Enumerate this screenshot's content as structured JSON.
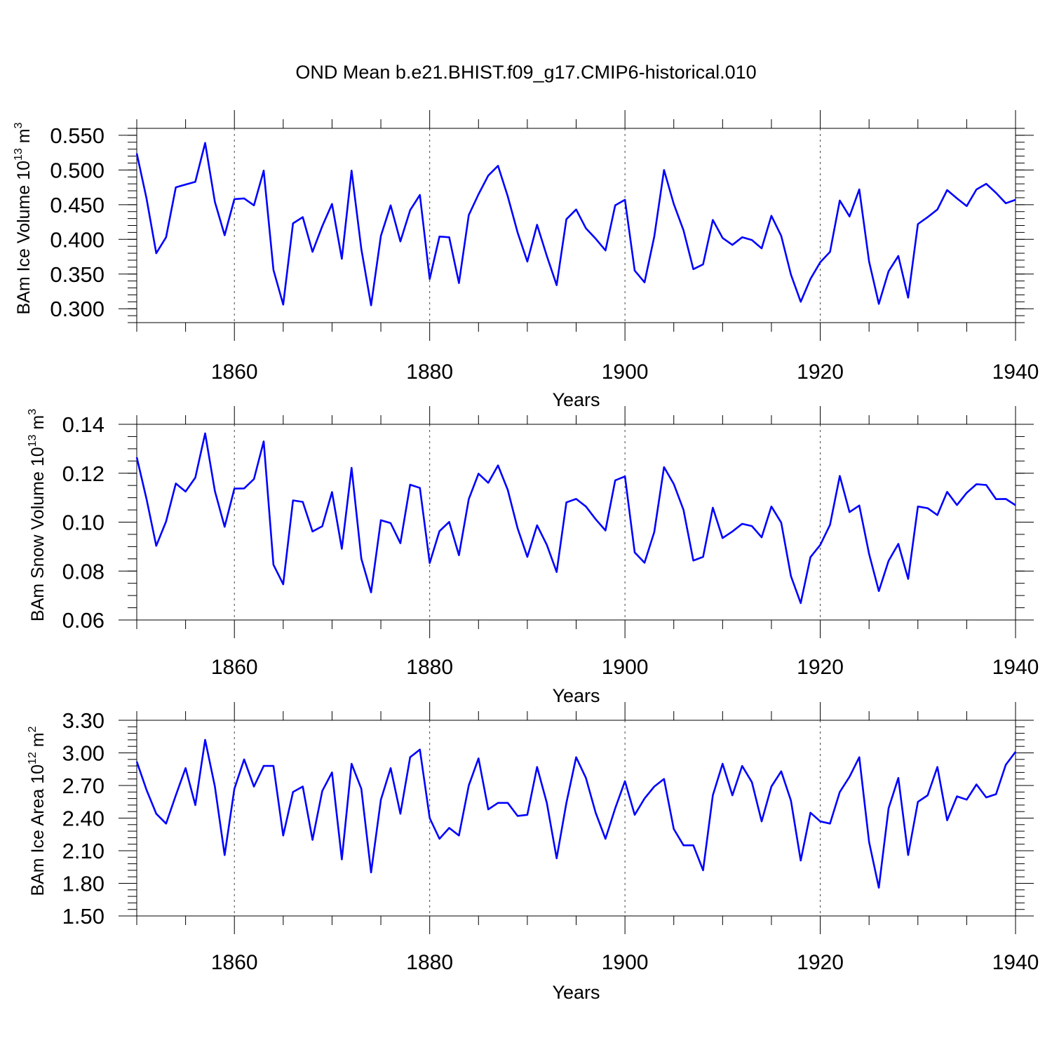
{
  "title": "OND Mean b.e21.BHIST.f09_g17.CMIP6-historical.010",
  "chart_data": [
    {
      "type": "line",
      "name": "ice-volume",
      "ylabel": "BAm Ice Volume 10",
      "ylabel_exp": "13",
      "ylabel_unit": " m",
      "ylabel_unit_exp": "3",
      "xlabel": "Years",
      "xlim": [
        1850,
        1940
      ],
      "ylim": [
        0.28,
        0.56
      ],
      "yticks": [
        0.3,
        0.35,
        0.4,
        0.45,
        0.5,
        0.55
      ],
      "ytick_labels": [
        "0.300",
        "0.350",
        "0.400",
        "0.450",
        "0.500",
        "0.550"
      ],
      "xticks": [
        1860,
        1880,
        1900,
        1920,
        1940
      ],
      "xtick_labels": [
        "1860",
        "1880",
        "1900",
        "1920",
        "1940"
      ],
      "x_start": 1850,
      "values": [
        0.524,
        0.459,
        0.38,
        0.403,
        0.475,
        0.479,
        0.483,
        0.539,
        0.454,
        0.406,
        0.458,
        0.459,
        0.449,
        0.499,
        0.356,
        0.306,
        0.423,
        0.432,
        0.382,
        0.419,
        0.451,
        0.372,
        0.499,
        0.386,
        0.305,
        0.405,
        0.449,
        0.397,
        0.442,
        0.464,
        0.343,
        0.404,
        0.403,
        0.337,
        0.435,
        0.465,
        0.492,
        0.506,
        0.462,
        0.41,
        0.368,
        0.421,
        0.376,
        0.334,
        0.429,
        0.443,
        0.416,
        0.401,
        0.384,
        0.449,
        0.457,
        0.355,
        0.338,
        0.404,
        0.5,
        0.451,
        0.413,
        0.357,
        0.364,
        0.428,
        0.402,
        0.392,
        0.403,
        0.399,
        0.387,
        0.434,
        0.405,
        0.349,
        0.31,
        0.343,
        0.367,
        0.382,
        0.456,
        0.433,
        0.472,
        0.368,
        0.307,
        0.354,
        0.376,
        0.316,
        0.422,
        0.432,
        0.443,
        0.471,
        0.459,
        0.448,
        0.472,
        0.48,
        0.467,
        0.452,
        0.457
      ]
    },
    {
      "type": "line",
      "name": "snow-volume",
      "ylabel": "BAm Snow Volume 10",
      "ylabel_exp": "13",
      "ylabel_unit": " m",
      "ylabel_unit_exp": "3",
      "xlabel": "Years",
      "xlim": [
        1850,
        1940
      ],
      "ylim": [
        0.06,
        0.14
      ],
      "yticks": [
        0.06,
        0.08,
        0.1,
        0.12,
        0.14
      ],
      "ytick_labels": [
        "0.06",
        "0.08",
        "0.10",
        "0.12",
        "0.14"
      ],
      "xticks": [
        1860,
        1880,
        1900,
        1920,
        1940
      ],
      "xtick_labels": [
        "1860",
        "1880",
        "1900",
        "1920",
        "1940"
      ],
      "x_start": 1850,
      "values": [
        0.1265,
        0.1095,
        0.0903,
        0.1003,
        0.1158,
        0.1125,
        0.1182,
        0.1363,
        0.1127,
        0.0981,
        0.1137,
        0.1138,
        0.1176,
        0.133,
        0.0826,
        0.0746,
        0.1089,
        0.1083,
        0.0962,
        0.0983,
        0.1123,
        0.0891,
        0.1222,
        0.0851,
        0.0713,
        0.1008,
        0.0996,
        0.0914,
        0.1153,
        0.114,
        0.0833,
        0.0963,
        0.1001,
        0.0865,
        0.1094,
        0.1198,
        0.1161,
        0.1232,
        0.1132,
        0.0975,
        0.0858,
        0.0987,
        0.0907,
        0.0796,
        0.1081,
        0.1095,
        0.1064,
        0.1012,
        0.0966,
        0.1171,
        0.1187,
        0.0876,
        0.0834,
        0.096,
        0.1225,
        0.1156,
        0.105,
        0.0843,
        0.0858,
        0.1059,
        0.0935,
        0.0962,
        0.0993,
        0.0984,
        0.0938,
        0.1064,
        0.0998,
        0.0779,
        0.0669,
        0.0857,
        0.0907,
        0.0989,
        0.1189,
        0.1041,
        0.1068,
        0.087,
        0.0718,
        0.0842,
        0.0911,
        0.0768,
        0.1064,
        0.1057,
        0.1029,
        0.1124,
        0.107,
        0.112,
        0.1155,
        0.1152,
        0.1094,
        0.1095,
        0.1069
      ]
    },
    {
      "type": "line",
      "name": "ice-area",
      "ylabel": "BAm Ice Area 10",
      "ylabel_exp": "12",
      "ylabel_unit": " m",
      "ylabel_unit_exp": "2",
      "xlabel": "Years",
      "xlim": [
        1850,
        1940
      ],
      "ylim": [
        1.5,
        3.3
      ],
      "yticks": [
        1.5,
        1.8,
        2.1,
        2.4,
        2.7,
        3.0,
        3.3
      ],
      "ytick_labels": [
        "1.50",
        "1.80",
        "2.10",
        "2.40",
        "2.70",
        "3.00",
        "3.30"
      ],
      "xticks": [
        1860,
        1880,
        1900,
        1920,
        1940
      ],
      "xtick_labels": [
        "1860",
        "1880",
        "1900",
        "1920",
        "1940"
      ],
      "x_start": 1850,
      "values": [
        2.92,
        2.66,
        2.44,
        2.35,
        2.61,
        2.86,
        2.52,
        3.12,
        2.69,
        2.06,
        2.67,
        2.94,
        2.69,
        2.88,
        2.88,
        2.24,
        2.64,
        2.69,
        2.2,
        2.65,
        2.82,
        2.02,
        2.9,
        2.67,
        1.9,
        2.57,
        2.86,
        2.44,
        2.96,
        3.03,
        2.4,
        2.21,
        2.31,
        2.24,
        2.7,
        2.95,
        2.48,
        2.54,
        2.54,
        2.42,
        2.43,
        2.87,
        2.54,
        2.03,
        2.54,
        2.96,
        2.77,
        2.45,
        2.21,
        2.49,
        2.74,
        2.43,
        2.58,
        2.69,
        2.76,
        2.3,
        2.15,
        2.15,
        1.92,
        2.61,
        2.9,
        2.61,
        2.88,
        2.73,
        2.37,
        2.69,
        2.83,
        2.56,
        2.01,
        2.45,
        2.37,
        2.35,
        2.64,
        2.78,
        2.96,
        2.18,
        1.76,
        2.49,
        2.77,
        2.06,
        2.55,
        2.61,
        2.87,
        2.38,
        2.6,
        2.57,
        2.71,
        2.59,
        2.62,
        2.89,
        3.01
      ]
    }
  ]
}
